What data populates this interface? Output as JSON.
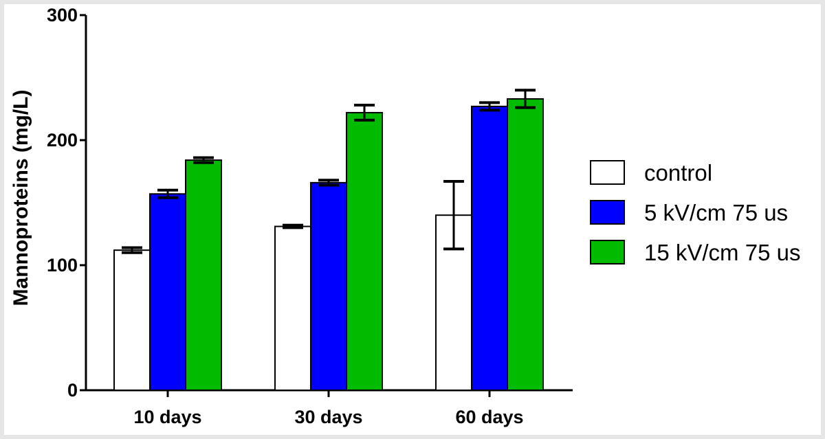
{
  "chart_data": {
    "type": "bar",
    "title": "",
    "xlabel": "",
    "ylabel": "Mannoproteins (mg/L)",
    "ylim": [
      0,
      300
    ],
    "yticks": [
      0,
      100,
      200,
      300
    ],
    "categories": [
      "10 days",
      "30 days",
      "60 days"
    ],
    "series": [
      {
        "name": "control",
        "color": "#ffffff",
        "values": [
          112,
          131,
          140
        ],
        "errors": [
          2,
          1,
          27
        ]
      },
      {
        "name": "5 kV/cm 75 us",
        "color": "#0000ff",
        "values": [
          157,
          166,
          227
        ],
        "errors": [
          3,
          2,
          3
        ]
      },
      {
        "name": "15 kV/cm 75 us",
        "color": "#00bb00",
        "values": [
          184,
          222,
          233
        ],
        "errors": [
          2,
          6,
          7
        ]
      }
    ],
    "legend_position": "right",
    "grid": false
  }
}
